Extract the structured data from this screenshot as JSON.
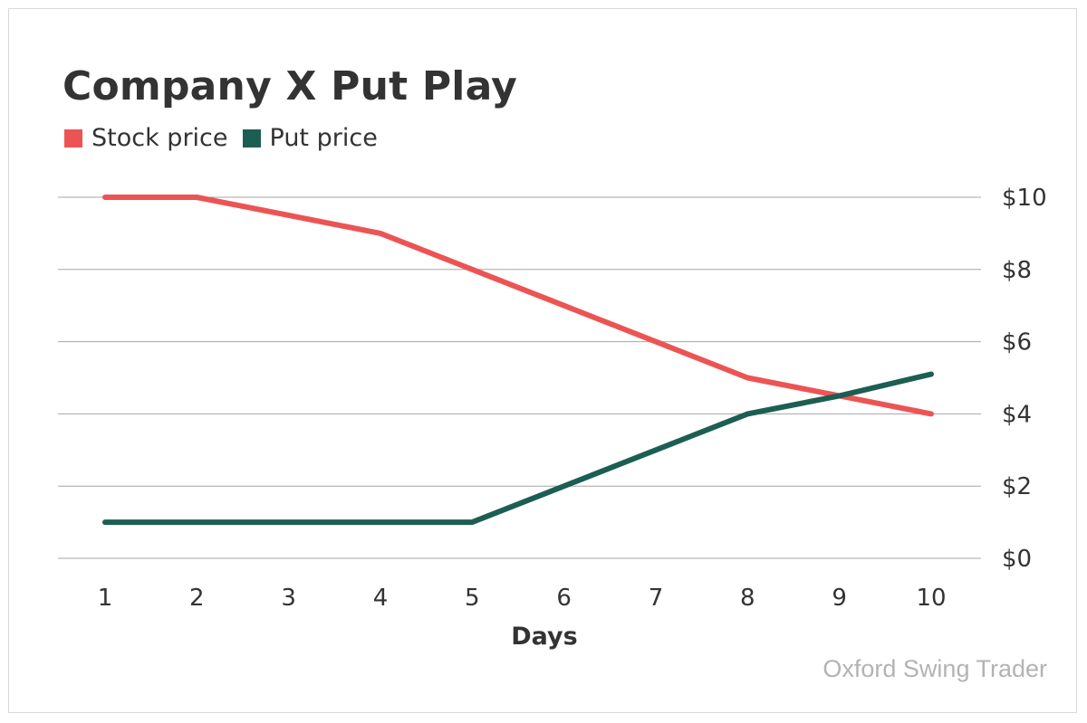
{
  "chart_data": {
    "type": "line",
    "title": "Company X Put Play",
    "xlabel": "Days",
    "ylabel": "",
    "x": [
      1,
      2,
      3,
      4,
      5,
      6,
      7,
      8,
      9,
      10
    ],
    "x_tick_labels": [
      "1",
      "2",
      "3",
      "4",
      "5",
      "6",
      "7",
      "8",
      "9",
      "10"
    ],
    "y_ticks": [
      0,
      2,
      4,
      6,
      8,
      10
    ],
    "y_tick_labels": [
      "$0",
      "$2",
      "$4",
      "$6",
      "$8",
      "$10"
    ],
    "ylim": [
      0,
      10
    ],
    "grid": "horizontal",
    "legend_position": "top-left",
    "y_axis_side": "right",
    "series": [
      {
        "name": "Stock price",
        "color": "#ec5454",
        "values": [
          10,
          10,
          9.5,
          9,
          8,
          7,
          6,
          5,
          4.5,
          4
        ]
      },
      {
        "name": "Put price",
        "color": "#1d5e52",
        "values": [
          1,
          1,
          1,
          1,
          1,
          2,
          3,
          4,
          4.5,
          5.1
        ]
      }
    ]
  },
  "credit": "Oxford Swing Trader"
}
